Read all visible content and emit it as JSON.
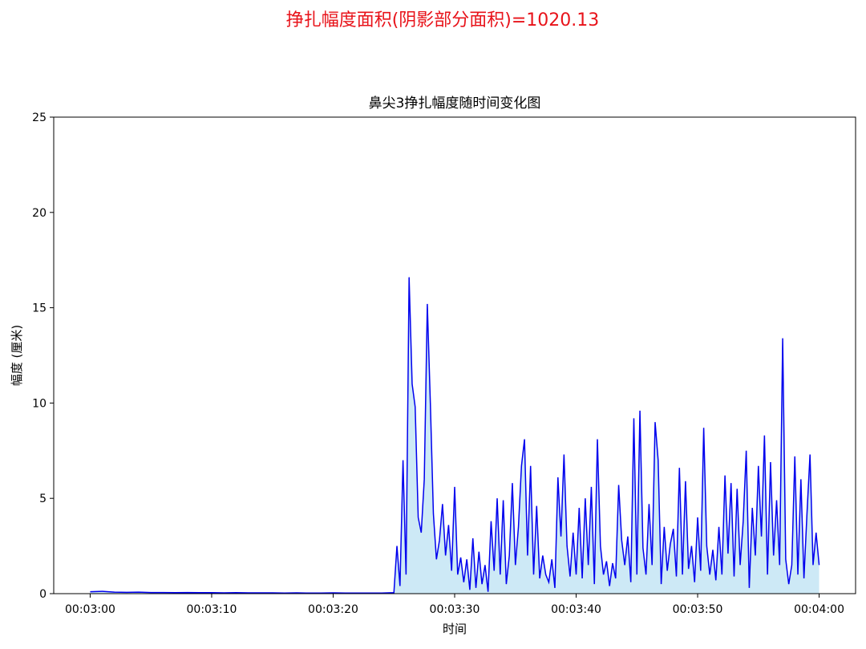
{
  "chart_data": {
    "type": "area-line",
    "suptitle": "挣扎幅度面积(阴影部分面积)=1020.13",
    "title": "鼻尖3挣扎幅度随时间变化图",
    "xlabel": "时间",
    "ylabel": "幅度 (厘米)",
    "xlim": [
      177,
      243
    ],
    "ylim": [
      0,
      25
    ],
    "xticks": [
      {
        "value": 180,
        "label": "00:03:00"
      },
      {
        "value": 190,
        "label": "00:03:10"
      },
      {
        "value": 200,
        "label": "00:03:20"
      },
      {
        "value": 210,
        "label": "00:03:30"
      },
      {
        "value": 220,
        "label": "00:03:40"
      },
      {
        "value": 230,
        "label": "00:03:50"
      },
      {
        "value": 240,
        "label": "00:04:00"
      }
    ],
    "yticks": [
      0,
      5,
      10,
      15,
      20,
      25
    ],
    "line_color": "#0000ee",
    "fill_color": "#cde9f6",
    "x": [
      180,
      181,
      182,
      183,
      184,
      185,
      186,
      187,
      188,
      189,
      190,
      191,
      192,
      193,
      194,
      195,
      196,
      197,
      198,
      199,
      200,
      201,
      202,
      203,
      204,
      205,
      205.25,
      205.5,
      205.75,
      206,
      206.25,
      206.5,
      206.75,
      207,
      207.25,
      207.5,
      207.75,
      208,
      208.25,
      208.5,
      208.75,
      209,
      209.25,
      209.5,
      209.75,
      210,
      210.25,
      210.5,
      210.75,
      211,
      211.25,
      211.5,
      211.75,
      212,
      212.25,
      212.5,
      212.75,
      213,
      213.25,
      213.5,
      213.75,
      214,
      214.25,
      214.5,
      214.75,
      215,
      215.25,
      215.5,
      215.75,
      216,
      216.25,
      216.5,
      216.75,
      217,
      217.25,
      217.5,
      217.75,
      218,
      218.25,
      218.5,
      218.75,
      219,
      219.25,
      219.5,
      219.75,
      220,
      220.25,
      220.5,
      220.75,
      221,
      221.25,
      221.5,
      221.75,
      222,
      222.25,
      222.5,
      222.75,
      223,
      223.25,
      223.5,
      223.75,
      224,
      224.25,
      224.5,
      224.75,
      225,
      225.25,
      225.5,
      225.75,
      226,
      226.25,
      226.5,
      226.75,
      227,
      227.25,
      227.5,
      227.75,
      228,
      228.25,
      228.5,
      228.75,
      229,
      229.25,
      229.5,
      229.75,
      230,
      230.25,
      230.5,
      230.75,
      231,
      231.25,
      231.5,
      231.75,
      232,
      232.25,
      232.5,
      232.75,
      233,
      233.25,
      233.5,
      233.75,
      234,
      234.25,
      234.5,
      234.75,
      235,
      235.25,
      235.5,
      235.75,
      236,
      236.25,
      236.5,
      236.75,
      237,
      237.25,
      237.5,
      237.75,
      238,
      238.25,
      238.5,
      238.75,
      239,
      239.25,
      239.5,
      239.75,
      240
    ],
    "values": [
      0.1,
      0.12,
      0.08,
      0.07,
      0.08,
      0.06,
      0.06,
      0.05,
      0.06,
      0.05,
      0.05,
      0.04,
      0.05,
      0.04,
      0.04,
      0.04,
      0.03,
      0.04,
      0.03,
      0.03,
      0.04,
      0.03,
      0.03,
      0.03,
      0.03,
      0.05,
      2.5,
      0.4,
      7.0,
      1.0,
      16.6,
      11.0,
      9.8,
      4.0,
      3.2,
      6.0,
      15.2,
      10.0,
      4.2,
      1.8,
      2.8,
      4.7,
      2.0,
      3.6,
      1.2,
      5.6,
      1.0,
      1.9,
      0.6,
      1.8,
      0.2,
      2.9,
      0.3,
      2.2,
      0.5,
      1.5,
      0.1,
      3.8,
      1.2,
      5.0,
      1.0,
      4.9,
      0.5,
      2.0,
      5.8,
      1.5,
      3.5,
      6.7,
      8.1,
      2.0,
      6.7,
      1.0,
      4.6,
      0.8,
      2.0,
      1.0,
      0.6,
      1.8,
      0.3,
      6.1,
      3.0,
      7.3,
      2.5,
      0.9,
      3.2,
      1.0,
      4.5,
      0.8,
      5.0,
      1.5,
      5.6,
      0.5,
      8.1,
      2.5,
      1.0,
      1.7,
      0.4,
      1.6,
      0.8,
      5.7,
      2.8,
      1.5,
      3.0,
      0.6,
      9.2,
      1.0,
      9.6,
      2.4,
      1.0,
      4.7,
      1.5,
      9.0,
      7.0,
      0.5,
      3.5,
      1.2,
      2.6,
      3.4,
      0.9,
      6.6,
      1.0,
      5.9,
      1.3,
      2.5,
      0.6,
      4.0,
      1.2,
      8.7,
      2.5,
      1.0,
      2.3,
      0.7,
      3.5,
      1.0,
      6.2,
      2.1,
      5.8,
      0.9,
      5.5,
      1.5,
      3.8,
      7.5,
      0.3,
      4.5,
      2.0,
      6.7,
      3.0,
      8.3,
      1.0,
      6.9,
      2.0,
      4.9,
      1.5,
      13.4,
      1.8,
      0.5,
      1.5,
      7.2,
      1.0,
      6.0,
      0.8,
      4.2,
      7.3,
      1.5,
      3.2,
      1.5
    ]
  }
}
